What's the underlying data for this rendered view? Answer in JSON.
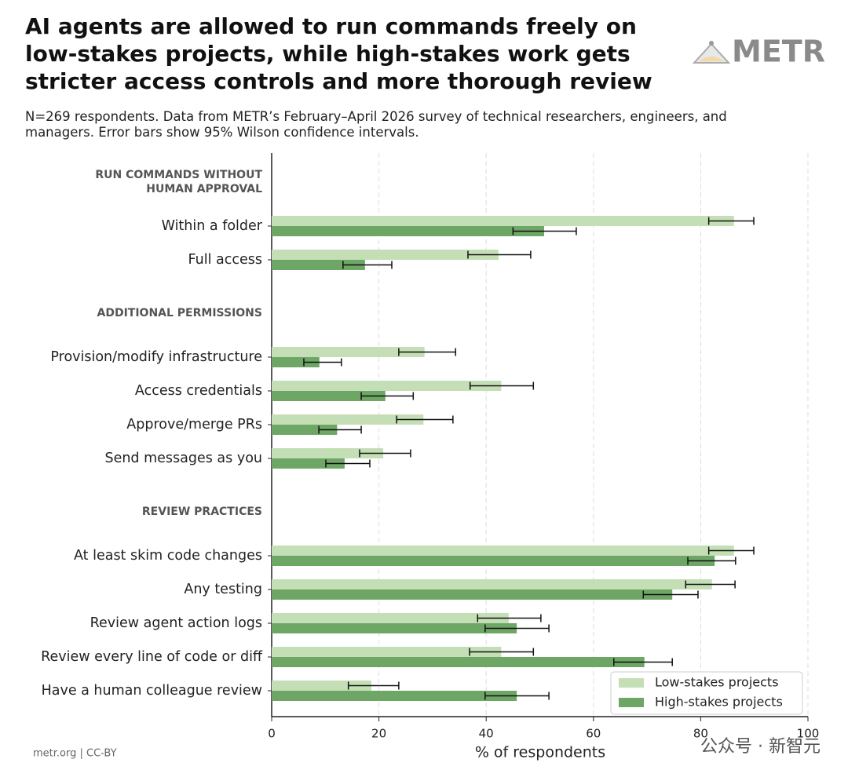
{
  "chart_data": {
    "type": "grouped-hbar",
    "title": "AI agents are allowed to run commands freely on low-stakes projects, while high-stakes work gets stricter access controls and more thorough review",
    "subtitle": "N=269 respondents. Data from METR’s February–April 2026 survey of technical researchers, engineers, and managers. Error bars show 95% Wilson confidence intervals.",
    "logo": "METR",
    "footer": "metr.org  |  CC-BY",
    "watermark": "公众号 · 新智元",
    "x_label": "% of respondents",
    "xlim": [
      0,
      100
    ],
    "xticks": [
      0,
      20,
      40,
      60,
      80,
      100
    ],
    "grid": true,
    "legend": "lower right",
    "sections": [
      {
        "label": "RUN COMMANDS WITHOUT HUMAN APPROVAL",
        "categories": [
          "Within a folder",
          "Full access"
        ]
      },
      {
        "label": "ADDITIONAL PERMISSIONS",
        "categories": [
          "Provision/modify infrastructure",
          "Access credentials",
          "Approve/merge PRs",
          "Send messages as you"
        ]
      },
      {
        "label": "REVIEW PRACTICES",
        "categories": [
          "At least skim code changes",
          "Any testing",
          "Review agent action logs",
          "Review every line of code or diff",
          "Have a human colleague review"
        ]
      }
    ],
    "series": [
      {
        "name": "Low-stakes projects",
        "color": "#c4dfb6",
        "values": [
          86.2,
          42.3,
          28.5,
          42.8,
          28.3,
          20.8,
          86.2,
          82.1,
          44.2,
          42.8,
          18.6
        ],
        "ci_lower": [
          81.5,
          36.6,
          23.7,
          37.0,
          23.3,
          16.4,
          81.5,
          77.2,
          38.4,
          36.9,
          14.3
        ],
        "ci_upper": [
          89.9,
          48.3,
          34.3,
          48.8,
          33.8,
          25.9,
          89.9,
          86.4,
          50.2,
          48.8,
          23.7
        ]
      },
      {
        "name": "High-stakes projects",
        "color": "#6ea765",
        "values": [
          50.8,
          17.4,
          8.9,
          21.2,
          12.2,
          13.6,
          82.6,
          74.7,
          45.7,
          69.5,
          45.7
        ],
        "ci_lower": [
          45.0,
          13.3,
          6.0,
          16.7,
          8.8,
          10.1,
          77.6,
          69.3,
          39.8,
          63.8,
          39.8
        ],
        "ci_upper": [
          56.8,
          22.4,
          13.0,
          26.4,
          16.7,
          18.3,
          86.5,
          79.5,
          51.7,
          74.7,
          51.7
        ]
      }
    ]
  }
}
